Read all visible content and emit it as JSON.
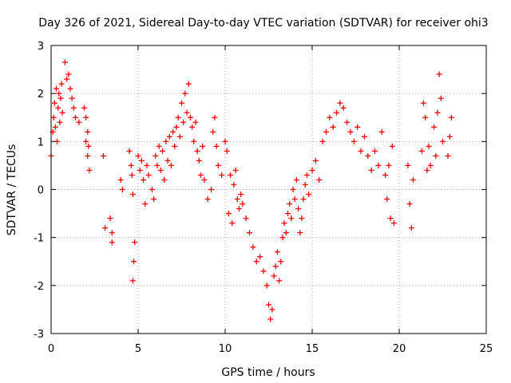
{
  "chart_data": {
    "type": "scatter",
    "title": "Day 326 of 2021, Sidereal Day-to-day VTEC variation (SDTVAR) for receiver ohi3",
    "xlabel": "GPS time / hours",
    "ylabel": "SDTVAR / TECUs",
    "xlim": [
      0,
      25
    ],
    "ylim": [
      -3,
      3
    ],
    "xticks": [
      "0",
      "5",
      "10",
      "15",
      "20",
      "25"
    ],
    "yticks": [
      "-3",
      "-2",
      "-1",
      "0",
      "1",
      "2",
      "3"
    ],
    "grid": true,
    "marker": "+",
    "color": "#ff0000",
    "series": [
      {
        "name": "SDTVAR",
        "points": [
          [
            0.0,
            0.7
          ],
          [
            0.1,
            1.2
          ],
          [
            0.15,
            1.5
          ],
          [
            0.2,
            1.8
          ],
          [
            0.25,
            1.3
          ],
          [
            0.3,
            2.1
          ],
          [
            0.35,
            1.0
          ],
          [
            0.4,
            1.7
          ],
          [
            0.45,
            2.0
          ],
          [
            0.5,
            1.4
          ],
          [
            0.55,
            1.9
          ],
          [
            0.6,
            2.2
          ],
          [
            0.65,
            1.6
          ],
          [
            0.8,
            2.65
          ],
          [
            0.9,
            2.3
          ],
          [
            1.0,
            2.4
          ],
          [
            1.1,
            2.1
          ],
          [
            1.2,
            1.9
          ],
          [
            1.3,
            1.7
          ],
          [
            1.4,
            1.5
          ],
          [
            1.6,
            1.4
          ],
          [
            1.9,
            1.7
          ],
          [
            2.0,
            1.5
          ],
          [
            2.1,
            1.2
          ],
          [
            2.0,
            1.0
          ],
          [
            2.1,
            0.7
          ],
          [
            2.2,
            0.4
          ],
          [
            2.15,
            0.9
          ],
          [
            3.0,
            0.7
          ],
          [
            3.1,
            -0.8
          ],
          [
            3.4,
            -0.6
          ],
          [
            3.5,
            -0.9
          ],
          [
            3.5,
            -1.1
          ],
          [
            4.0,
            0.2
          ],
          [
            4.1,
            0.0
          ],
          [
            4.5,
            0.8
          ],
          [
            4.6,
            0.5
          ],
          [
            4.65,
            0.3
          ],
          [
            4.7,
            -0.1
          ],
          [
            4.8,
            -1.1
          ],
          [
            4.75,
            -1.5
          ],
          [
            4.7,
            -1.9
          ],
          [
            5.0,
            0.7
          ],
          [
            5.1,
            0.4
          ],
          [
            5.2,
            0.6
          ],
          [
            5.3,
            0.2
          ],
          [
            5.4,
            -0.3
          ],
          [
            5.5,
            0.5
          ],
          [
            5.6,
            0.3
          ],
          [
            5.8,
            0.0
          ],
          [
            5.9,
            -0.2
          ],
          [
            6.0,
            0.7
          ],
          [
            6.1,
            0.5
          ],
          [
            6.2,
            0.9
          ],
          [
            6.3,
            0.4
          ],
          [
            6.4,
            0.8
          ],
          [
            6.5,
            0.2
          ],
          [
            6.6,
            1.0
          ],
          [
            6.7,
            0.6
          ],
          [
            6.8,
            1.1
          ],
          [
            6.9,
            0.5
          ],
          [
            7.0,
            1.2
          ],
          [
            7.1,
            0.9
          ],
          [
            7.2,
            1.3
          ],
          [
            7.3,
            1.5
          ],
          [
            7.4,
            1.1
          ],
          [
            7.5,
            1.8
          ],
          [
            7.6,
            1.4
          ],
          [
            7.7,
            2.0
          ],
          [
            7.8,
            1.6
          ],
          [
            7.9,
            2.2
          ],
          [
            8.0,
            1.5
          ],
          [
            8.1,
            1.3
          ],
          [
            8.2,
            1.0
          ],
          [
            8.3,
            1.4
          ],
          [
            8.4,
            0.8
          ],
          [
            8.5,
            0.6
          ],
          [
            8.6,
            0.3
          ],
          [
            8.7,
            0.9
          ],
          [
            8.8,
            0.2
          ],
          [
            9.0,
            -0.2
          ],
          [
            9.2,
            0.0
          ],
          [
            9.3,
            1.2
          ],
          [
            9.4,
            1.5
          ],
          [
            9.5,
            0.9
          ],
          [
            9.6,
            0.5
          ],
          [
            9.8,
            0.3
          ],
          [
            10.0,
            1.0
          ],
          [
            10.1,
            0.8
          ],
          [
            10.2,
            -0.5
          ],
          [
            10.3,
            0.3
          ],
          [
            10.4,
            -0.7
          ],
          [
            10.5,
            0.1
          ],
          [
            10.6,
            0.4
          ],
          [
            10.7,
            -0.2
          ],
          [
            10.8,
            -0.4
          ],
          [
            10.9,
            -0.1
          ],
          [
            11.0,
            -0.3
          ],
          [
            11.2,
            -0.6
          ],
          [
            11.4,
            -0.9
          ],
          [
            11.6,
            -1.2
          ],
          [
            11.8,
            -1.5
          ],
          [
            12.0,
            -1.4
          ],
          [
            12.2,
            -1.7
          ],
          [
            12.4,
            -2.0
          ],
          [
            12.5,
            -2.4
          ],
          [
            12.6,
            -2.7
          ],
          [
            12.7,
            -2.5
          ],
          [
            12.8,
            -1.8
          ],
          [
            12.9,
            -1.6
          ],
          [
            13.0,
            -1.3
          ],
          [
            13.1,
            -1.9
          ],
          [
            13.2,
            -1.5
          ],
          [
            13.3,
            -1.0
          ],
          [
            13.4,
            -0.7
          ],
          [
            13.5,
            -0.9
          ],
          [
            13.6,
            -0.5
          ],
          [
            13.7,
            -0.3
          ],
          [
            13.8,
            -0.6
          ],
          [
            13.9,
            0.0
          ],
          [
            14.0,
            -0.2
          ],
          [
            14.1,
            0.2
          ],
          [
            14.2,
            -0.4
          ],
          [
            14.3,
            -0.9
          ],
          [
            14.4,
            -0.6
          ],
          [
            14.5,
            -0.2
          ],
          [
            14.6,
            0.1
          ],
          [
            14.7,
            0.3
          ],
          [
            14.8,
            -0.1
          ],
          [
            15.0,
            0.4
          ],
          [
            15.2,
            0.6
          ],
          [
            15.4,
            0.2
          ],
          [
            15.6,
            1.0
          ],
          [
            15.8,
            1.2
          ],
          [
            16.0,
            1.5
          ],
          [
            16.2,
            1.3
          ],
          [
            16.4,
            1.6
          ],
          [
            16.6,
            1.8
          ],
          [
            16.8,
            1.7
          ],
          [
            17.0,
            1.4
          ],
          [
            17.2,
            1.2
          ],
          [
            17.4,
            1.0
          ],
          [
            17.6,
            1.3
          ],
          [
            17.8,
            0.8
          ],
          [
            18.0,
            1.1
          ],
          [
            18.2,
            0.7
          ],
          [
            18.4,
            0.4
          ],
          [
            18.6,
            0.8
          ],
          [
            18.8,
            0.5
          ],
          [
            19.0,
            1.2
          ],
          [
            19.2,
            0.3
          ],
          [
            19.3,
            -0.2
          ],
          [
            19.4,
            0.5
          ],
          [
            19.5,
            -0.6
          ],
          [
            19.6,
            0.9
          ],
          [
            19.7,
            -0.7
          ],
          [
            20.5,
            0.5
          ],
          [
            20.6,
            -0.3
          ],
          [
            20.7,
            -0.8
          ],
          [
            20.8,
            0.2
          ],
          [
            21.3,
            0.8
          ],
          [
            21.4,
            1.8
          ],
          [
            21.5,
            1.5
          ],
          [
            21.6,
            0.4
          ],
          [
            21.7,
            0.9
          ],
          [
            21.8,
            0.5
          ],
          [
            22.0,
            1.3
          ],
          [
            22.1,
            0.7
          ],
          [
            22.2,
            1.6
          ],
          [
            22.3,
            2.4
          ],
          [
            22.4,
            1.9
          ],
          [
            22.5,
            1.0
          ],
          [
            22.8,
            0.7
          ],
          [
            22.9,
            1.1
          ],
          [
            23.0,
            1.5
          ]
        ]
      }
    ]
  }
}
